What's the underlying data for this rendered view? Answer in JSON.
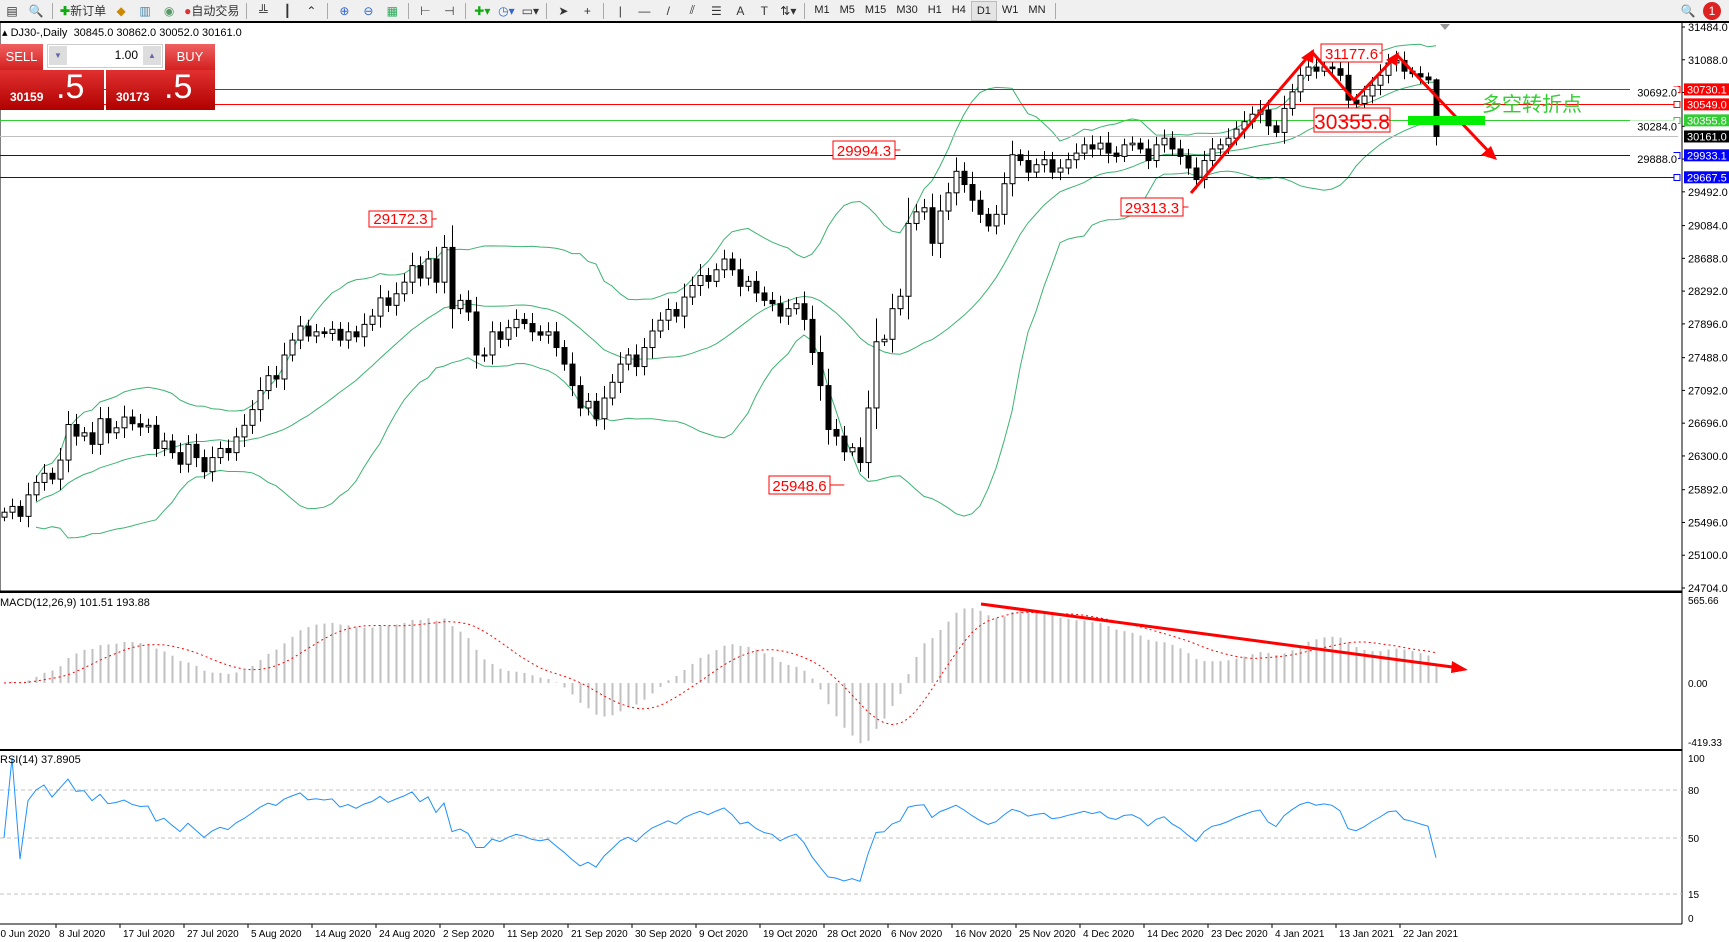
{
  "toolbar": {
    "new_order": "新订单",
    "auto_trading": "自动交易",
    "timeframes": [
      "M1",
      "M5",
      "M15",
      "M30",
      "H1",
      "H4",
      "D1",
      "W1",
      "MN"
    ],
    "active_timeframe": "D1",
    "notification_count": "1"
  },
  "chart_header": {
    "symbol": "DJ30-,Daily",
    "ohlc": "30845.0 30862.0 30052.0 30161.0"
  },
  "trade_panel": {
    "sell_label": "SELL",
    "buy_label": "BUY",
    "lot": "1.00",
    "sell_main": "30159",
    "sell_frac": ".5",
    "buy_main": "30173",
    "buy_frac": ".5"
  },
  "colors": {
    "bands": "#3cb371",
    "red": "#ff0000",
    "green": "#32cd32",
    "blue": "#0000ff",
    "rsi": "#1e90ff",
    "histogram": "#c0c0c0"
  },
  "chart_data": [
    {
      "type": "candlestick",
      "title": "DJ30-,Daily",
      "ylim": [
        24704,
        31484
      ],
      "y_ticks": [
        "24704.0",
        "25100.0",
        "25496.0",
        "25892.0",
        "26300.0",
        "26696.0",
        "27092.0",
        "27488.0",
        "27896.0",
        "28292.0",
        "28688.0",
        "29084.0",
        "29492.0",
        "29888.0",
        "30284.0",
        "30692.0",
        "31088.0",
        "31484.0"
      ],
      "x_tick_labels": [
        "30 Jun 2020",
        "8 Jul 2020",
        "17 Jul 2020",
        "27 Jul 2020",
        "5 Aug 2020",
        "14 Aug 2020",
        "24 Aug 2020",
        "2 Sep 2020",
        "11 Sep 2020",
        "21 Sep 2020",
        "30 Sep 2020",
        "9 Oct 2020",
        "19 Oct 2020",
        "28 Oct 2020",
        "6 Nov 2020",
        "16 Nov 2020",
        "25 Nov 2020",
        "4 Dec 2020",
        "14 Dec 2020",
        "23 Dec 2020",
        "4 Jan 2021",
        "13 Jan 2021",
        "22 Jan 2021"
      ],
      "closes": [
        25620,
        25690,
        25570,
        25830,
        25980,
        26090,
        26020,
        26250,
        26680,
        26540,
        26580,
        26440,
        26750,
        26580,
        26640,
        26770,
        26690,
        26650,
        26670,
        26390,
        26480,
        26340,
        26200,
        26440,
        26280,
        26110,
        26280,
        26390,
        26340,
        26530,
        26670,
        26860,
        27090,
        27270,
        27230,
        27520,
        27700,
        27870,
        27750,
        27800,
        27780,
        27830,
        27700,
        27800,
        27740,
        27890,
        27990,
        28210,
        28120,
        28260,
        28400,
        28600,
        28450,
        28680,
        28400,
        28820,
        28080,
        28180,
        28040,
        27520,
        27520,
        27800,
        27710,
        27850,
        27950,
        27900,
        27800,
        27760,
        27800,
        27610,
        27410,
        27150,
        26880,
        26960,
        26750,
        27000,
        27190,
        27410,
        27520,
        27380,
        27610,
        27810,
        27940,
        28070,
        27990,
        28220,
        28360,
        28480,
        28410,
        28550,
        28680,
        28550,
        28350,
        28410,
        28270,
        28180,
        28140,
        27990,
        28080,
        28140,
        27950,
        27550,
        27150,
        26620,
        26540,
        26350,
        26400,
        26220,
        26880,
        27680,
        27710,
        28080,
        28230,
        29110,
        29250,
        29300,
        28870,
        29260,
        29480,
        29740,
        29580,
        29390,
        29220,
        29080,
        29220,
        29590,
        29940,
        29870,
        29730,
        29820,
        29880,
        29730,
        29780,
        29880,
        29960,
        30060,
        30010,
        30080,
        29960,
        29920,
        30060,
        30080,
        30010,
        29870,
        30060,
        30140,
        30010,
        29920,
        29780,
        29640,
        29870,
        30010,
        30060,
        30140,
        30250,
        30340,
        30430,
        30480,
        30290,
        30210,
        30500,
        30700,
        30900,
        31000,
        30950,
        31000,
        30980,
        30900,
        30600,
        30560,
        30650,
        30780,
        30900,
        31050,
        31080,
        30950,
        30920,
        30880,
        30845,
        30161
      ],
      "last_bar_ohlc": [
        30845.0,
        30862.0,
        30052.0,
        30161.0
      ],
      "horizontal_lines": [
        {
          "price": 30730.1,
          "label": "30730.1",
          "color": "#ff0000"
        },
        {
          "price": 30549.0,
          "label": "30549.0",
          "color": "#ff0000"
        },
        {
          "price": 30355.8,
          "label": "30355.8",
          "color": "#32cd32"
        },
        {
          "price": 30161.0,
          "label": "30161.0",
          "color": "#000000"
        },
        {
          "price": 29933.1,
          "label": "29933.1",
          "color": "#0000ff"
        },
        {
          "price": 29667.5,
          "label": "29667.5",
          "color": "#0000ff"
        }
      ],
      "annotations": [
        {
          "text": "29172.3",
          "bar": 54,
          "price": 29172.3
        },
        {
          "text": "29994.3",
          "bar": 112,
          "price": 29994.3
        },
        {
          "text": "25948.6",
          "bar": 105,
          "price": 25948.6
        },
        {
          "text": "29313.3",
          "bar": 148,
          "price": 29313.3
        },
        {
          "text": "31177.6",
          "bar": 172,
          "price": 31177.6
        },
        {
          "text": "30355.8",
          "bar": 167,
          "price": 30355.8
        }
      ],
      "overlay_text": "多空转折点"
    },
    {
      "type": "bar+line",
      "label": "MACD(12,26,9) 101.51 193.88",
      "ylim": [
        -419.33,
        565.66
      ],
      "y_ticks": [
        "565.66",
        "0.00",
        "-419.33"
      ]
    },
    {
      "type": "line",
      "label": "RSI(14) 37.8905",
      "ylim": [
        0,
        100
      ],
      "levels": [
        80,
        50,
        15
      ],
      "y_ticks": [
        "100",
        "80",
        "50",
        "15",
        "0"
      ]
    }
  ]
}
